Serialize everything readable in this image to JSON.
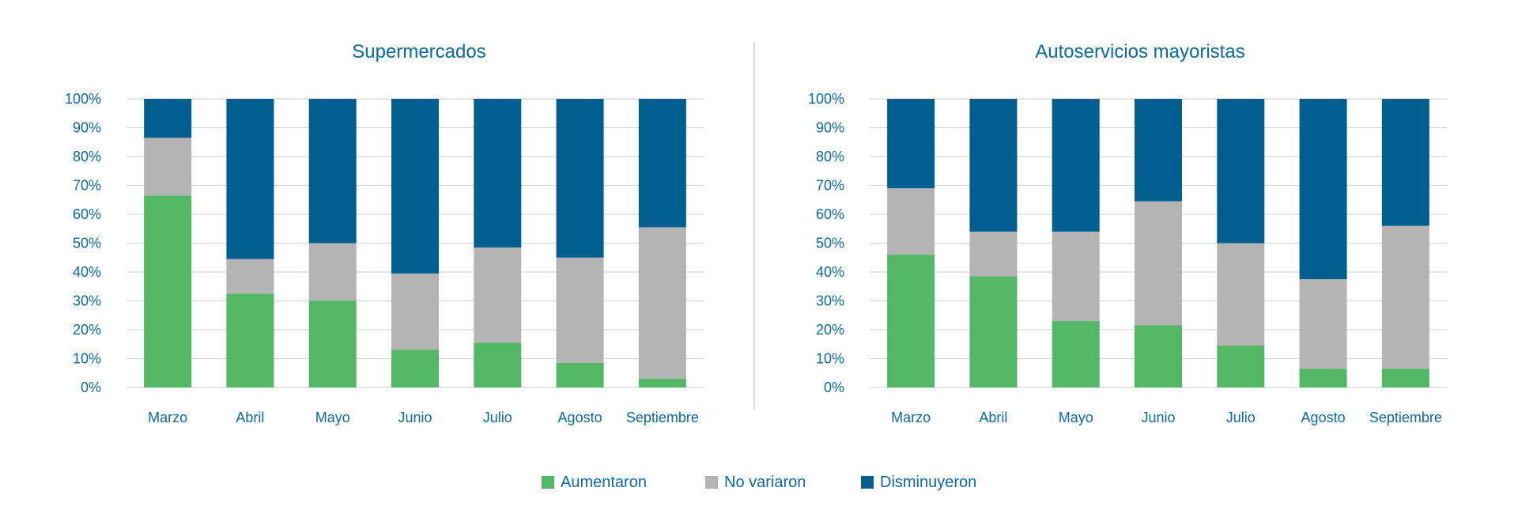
{
  "colors": {
    "aumentaron": "#52b866",
    "no_variaron": "#b4b4b4",
    "disminuyeron": "#005f8e",
    "text": "#0a6aa1",
    "grid": "#d6d6d6"
  },
  "legend": {
    "items": [
      {
        "label": "Aumentaron",
        "color_key": "aumentaron"
      },
      {
        "label": "No variaron",
        "color_key": "no_variaron"
      },
      {
        "label": "Disminuyeron",
        "color_key": "disminuyeron"
      }
    ]
  },
  "chart_data": [
    {
      "type": "bar",
      "stacked": true,
      "title": "Supermercados",
      "categories": [
        "Marzo",
        "Abril",
        "Mayo",
        "Junio",
        "Julio",
        "Agosto",
        "Septiembre"
      ],
      "y_ticks": [
        "0%",
        "10%",
        "20%",
        "30%",
        "40%",
        "50%",
        "60%",
        "70%",
        "80%",
        "90%",
        "100%"
      ],
      "ylim": [
        0,
        100
      ],
      "series": [
        {
          "name": "Aumentaron",
          "color_key": "aumentaron",
          "values": [
            66.5,
            32.5,
            30,
            13,
            15.5,
            8.5,
            3
          ]
        },
        {
          "name": "No variaron",
          "color_key": "no_variaron",
          "values": [
            20,
            12,
            20,
            26.5,
            33,
            36.5,
            52.5
          ]
        },
        {
          "name": "Disminuyeron",
          "color_key": "disminuyeron",
          "values": [
            13.5,
            55.5,
            50,
            60.5,
            51.5,
            55,
            44.5
          ]
        }
      ],
      "grid": true
    },
    {
      "type": "bar",
      "stacked": true,
      "title": "Autoservicios mayoristas",
      "categories": [
        "Marzo",
        "Abril",
        "Mayo",
        "Junio",
        "Julio",
        "Agosto",
        "Septiembre"
      ],
      "y_ticks": [
        "0%",
        "10%",
        "20%",
        "30%",
        "40%",
        "50%",
        "60%",
        "70%",
        "80%",
        "90%",
        "100%"
      ],
      "ylim": [
        0,
        100
      ],
      "series": [
        {
          "name": "Aumentaron",
          "color_key": "aumentaron",
          "values": [
            46,
            38.5,
            23,
            21.5,
            14.5,
            6.5,
            6.5
          ]
        },
        {
          "name": "No variaron",
          "color_key": "no_variaron",
          "values": [
            23,
            15.5,
            31,
            43,
            35.5,
            31,
            49.5
          ]
        },
        {
          "name": "Disminuyeron",
          "color_key": "disminuyeron",
          "values": [
            31,
            46,
            46,
            35.5,
            50,
            62.5,
            44
          ]
        }
      ],
      "grid": true
    }
  ]
}
